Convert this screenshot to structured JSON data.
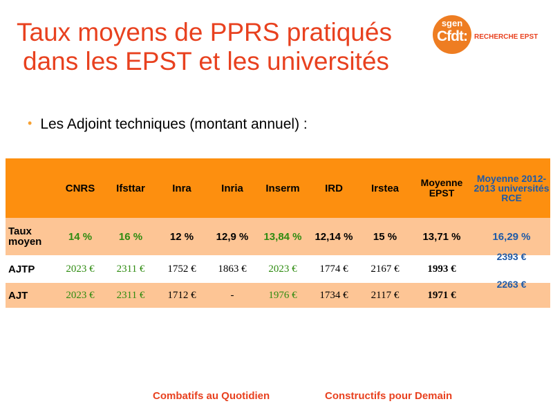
{
  "title": {
    "line1": "Taux moyens de PPRS pratiqués",
    "line2": "dans les EPST et les universités"
  },
  "logo": {
    "top": "sgen",
    "main": "Cfdt:",
    "text": "RECHERCHE EPST"
  },
  "bullet": "Les Adjoint techniques (montant annuel) :",
  "table": {
    "headers": [
      "",
      "CNRS",
      "Ifsttar",
      "Inra",
      "Inria",
      "Inserm",
      "IRD",
      "Irstea",
      "Moyenne EPST",
      "Moyenne 2012-2013 universités RCE"
    ],
    "rows": [
      {
        "label": "Taux moyen",
        "cells": [
          "14 %",
          "16 %",
          "12 %",
          "12,9 %",
          "13,84 %",
          "12,14 %",
          "15 %",
          "13,71 %",
          "16,29 %"
        ]
      },
      {
        "label": "AJTP",
        "cells": [
          "2023 €",
          "2311 €",
          "1752 €",
          "1863 €",
          "2023 €",
          "1774 €",
          "2167 €",
          "1993 €",
          "2393 €"
        ]
      },
      {
        "label": "AJT",
        "cells": [
          "2023 €",
          "2311 €",
          "1712 €",
          "-",
          "1976 €",
          "1734 €",
          "2117 €",
          "1971 €",
          "2263 €"
        ]
      }
    ]
  },
  "colors": {
    "title": "#e8411f",
    "header_bg": "#fd8f0f",
    "row_bg": "#fdc595",
    "green": "#2e8b10",
    "blue": "#1f5aa7"
  },
  "footer": {
    "left": "Combatifs au Quotidien",
    "right": "Constructifs pour Demain"
  }
}
